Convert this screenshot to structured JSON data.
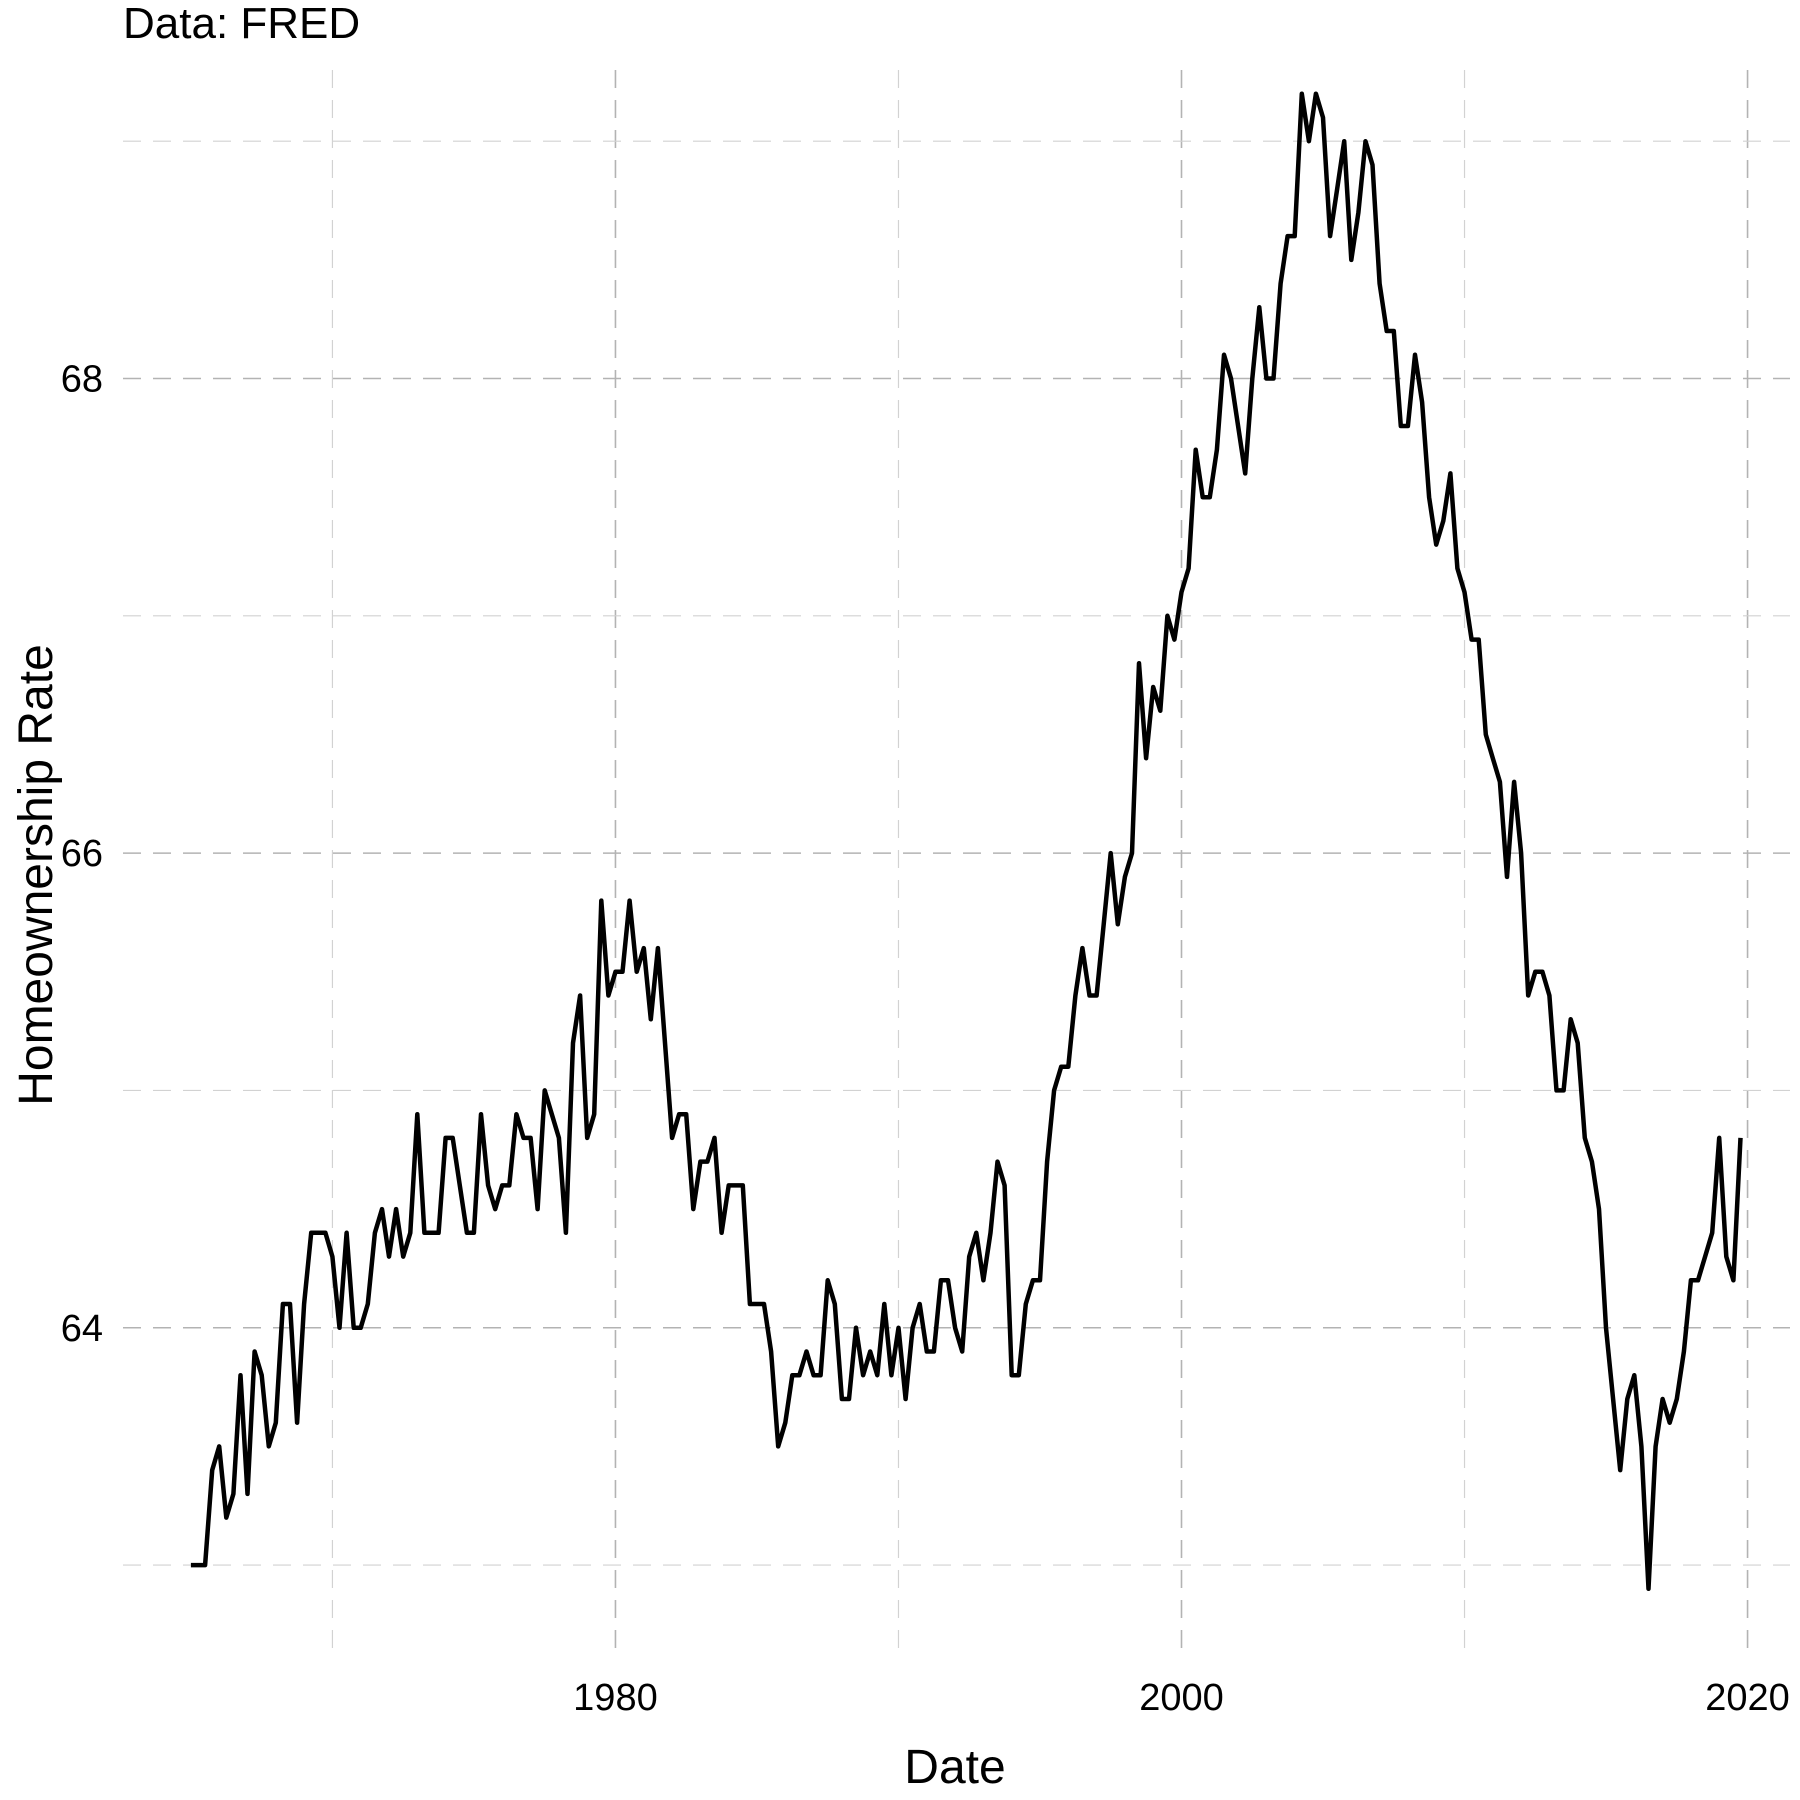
{
  "caption": "Data: FRED",
  "chart_data": {
    "type": "line",
    "title": "",
    "xlabel": "Date",
    "ylabel": "Homeownership Rate",
    "caption": "Data: FRED",
    "x_tick_labels": [
      "1980",
      "2000",
      "2020"
    ],
    "y_tick_labels": [
      "64",
      "66",
      "68"
    ],
    "xlim": [
      1962.6,
      2021.5
    ],
    "ylim": [
      62.6,
      69.3
    ],
    "grid": true,
    "legend": "none",
    "line_color": "#000000",
    "series": [
      {
        "x_start": 1965.0,
        "step": 0.25,
        "values": [
          63.0,
          63.0,
          63.0,
          63.4,
          63.5,
          63.2,
          63.3,
          63.8,
          63.3,
          63.9,
          63.8,
          63.5,
          63.6,
          64.1,
          64.1,
          63.6,
          64.1,
          64.4,
          64.4,
          64.4,
          64.3,
          64.0,
          64.4,
          64.0,
          64.0,
          64.1,
          64.4,
          64.5,
          64.3,
          64.5,
          64.3,
          64.4,
          64.9,
          64.4,
          64.4,
          64.4,
          64.8,
          64.8,
          64.6,
          64.4,
          64.4,
          64.9,
          64.6,
          64.5,
          64.6,
          64.6,
          64.9,
          64.8,
          64.8,
          64.5,
          65.0,
          64.9,
          64.8,
          64.4,
          65.2,
          65.4,
          64.8,
          64.9,
          65.8,
          65.4,
          65.5,
          65.5,
          65.8,
          65.5,
          65.6,
          65.3,
          65.6,
          65.2,
          64.8,
          64.9,
          64.9,
          64.5,
          64.7,
          64.7,
          64.8,
          64.4,
          64.6,
          64.6,
          64.6,
          64.1,
          64.1,
          64.1,
          63.9,
          63.5,
          63.6,
          63.8,
          63.8,
          63.9,
          63.8,
          63.8,
          64.2,
          64.1,
          63.7,
          63.7,
          64.0,
          63.8,
          63.9,
          63.8,
          64.1,
          63.8,
          64.0,
          63.7,
          64.0,
          64.1,
          63.9,
          63.9,
          64.2,
          64.2,
          64.0,
          63.9,
          64.3,
          64.4,
          64.2,
          64.4,
          64.7,
          64.6,
          63.8,
          63.8,
          64.1,
          64.2,
          64.2,
          64.7,
          65.0,
          65.1,
          65.1,
          65.4,
          65.6,
          65.4,
          65.4,
          65.7,
          66.0,
          65.7,
          65.9,
          66.0,
          66.8,
          66.4,
          66.7,
          66.6,
          67.0,
          66.9,
          67.1,
          67.2,
          67.7,
          67.5,
          67.5,
          67.7,
          68.1,
          68.0,
          67.8,
          67.6,
          68.0,
          68.3,
          68.0,
          68.0,
          68.4,
          68.6,
          68.6,
          69.2,
          69.0,
          69.2,
          69.1,
          68.6,
          68.8,
          69.0,
          68.5,
          68.7,
          69.0,
          68.9,
          68.4,
          68.2,
          68.2,
          67.8,
          67.8,
          68.1,
          67.9,
          67.5,
          67.3,
          67.4,
          67.6,
          67.2,
          67.1,
          66.9,
          66.9,
          66.5,
          66.4,
          66.3,
          65.9,
          66.3,
          66.0,
          65.4,
          65.5,
          65.5,
          65.4,
          65.0,
          65.0,
          65.3,
          65.2,
          64.8,
          64.7,
          64.5,
          64.0,
          63.7,
          63.4,
          63.7,
          63.8,
          63.5,
          62.9,
          63.5,
          63.7,
          63.6,
          63.7,
          63.9,
          64.2,
          64.2,
          64.3,
          64.4,
          64.8,
          64.3,
          64.2,
          64.8
        ]
      }
    ]
  }
}
